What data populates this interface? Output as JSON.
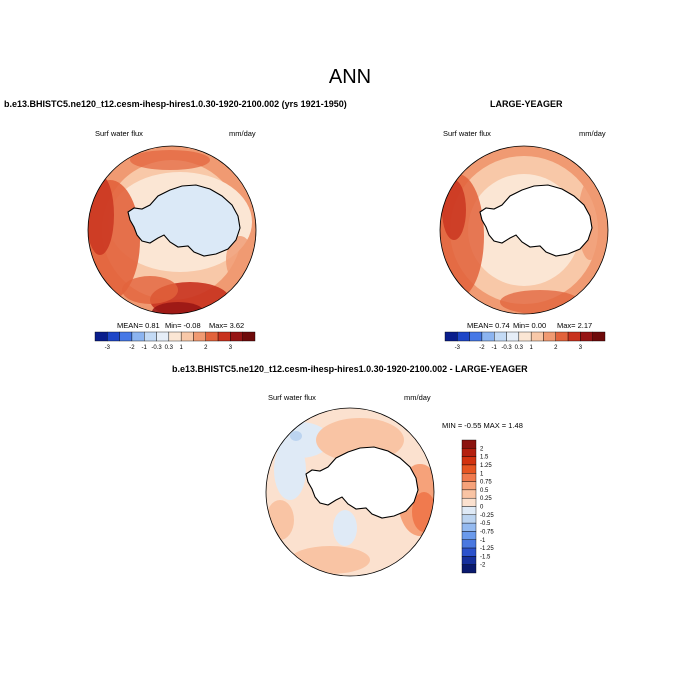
{
  "page": {
    "title": "ANN"
  },
  "chart_data": [
    {
      "type": "heatmap",
      "title": "b.e13.BHISTC5.ne120_t12.cesm-ihesp-hires1.0.30-1920-2100.002 (yrs 1921-1950)",
      "variable": "Surf water flux",
      "units": "mm/day",
      "projection": "south polar stereographic",
      "stats": {
        "mean_text": "MEAN=  0.81",
        "min_text": "Min=  -0.08",
        "max_text": "Max=   3.62"
      },
      "colorbar": {
        "orientation": "horizontal",
        "labels": [
          "-3",
          "-2",
          "-1",
          "-0.3",
          "0.3",
          "1",
          "2",
          "3"
        ]
      }
    },
    {
      "type": "heatmap",
      "title": "LARGE-YEAGER",
      "variable": "Surf water flux",
      "units": "mm/day",
      "projection": "south polar stereographic",
      "stats": {
        "mean_text": "MEAN=  0.74",
        "min_text": "Min=   0.00",
        "max_text": "Max=   2.17"
      },
      "colorbar": {
        "orientation": "horizontal",
        "labels": [
          "-3",
          "-2",
          "-1",
          "-0.3",
          "0.3",
          "1",
          "2",
          "3"
        ]
      }
    },
    {
      "type": "heatmap",
      "title": "b.e13.BHISTC5.ne120_t12.cesm-ihesp-hires1.0.30-1920-2100.002 - LARGE-YEAGER",
      "variable": "Surf water flux",
      "units": "mm/day",
      "projection": "south polar stereographic",
      "stats": {
        "minmax_text": "MIN =  -0.55 MAX =   1.48"
      },
      "colorbar": {
        "orientation": "vertical",
        "labels": [
          "2",
          "1.5",
          "1.25",
          "1",
          "0.75",
          "0.5",
          "0.25",
          "0",
          "-0.25",
          "-0.5",
          "-0.75",
          "-1",
          "-1.25",
          "-1.5",
          "-2"
        ]
      }
    }
  ],
  "colors": {
    "horizontal_scale": [
      "#0a1e8c",
      "#1e46c8",
      "#4678e6",
      "#8cb4f0",
      "#c3daf5",
      "#e6eef8",
      "#fbe6d4",
      "#f8c8a8",
      "#f09a72",
      "#e2633c",
      "#c8321e",
      "#961414",
      "#6e0a0a"
    ],
    "vertical_scale": [
      "#8c1410",
      "#b4200f",
      "#d2320f",
      "#e65522",
      "#f07a4e",
      "#f6a27a",
      "#f9c4a4",
      "#fbe1cf",
      "#dfeaf6",
      "#bcd4f0",
      "#94baf0",
      "#6a9aec",
      "#4a78e0",
      "#2c52cc",
      "#16309c",
      "#0a1a6e"
    ],
    "antarctica_fill_model": "#dbe9f7",
    "antarctica_fill_obs": "#ffffff"
  }
}
